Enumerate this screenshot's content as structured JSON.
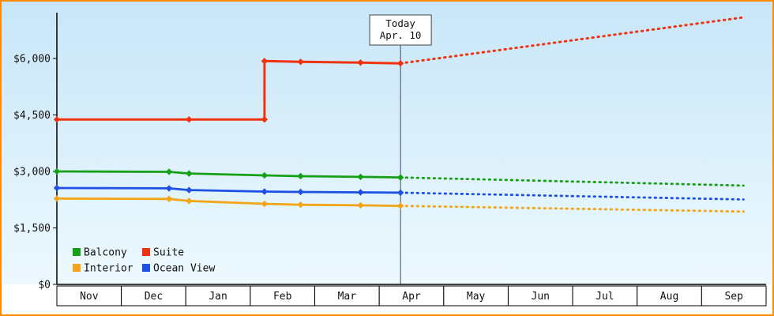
{
  "colors": {
    "frame_border": "#ff8c00",
    "bg_top": "#c8e6f8",
    "bg_bottom": "#edf9fe",
    "axis": "#000000",
    "text": "#111111",
    "today_line": "#3a4a5a",
    "annotation_border": "#444444",
    "month_cell_fill": "#ffffff"
  },
  "chart_data": {
    "type": "line",
    "title": "",
    "forecast_style": "dotted",
    "legend_position": "bottom-left",
    "grid": false,
    "x_axis": {
      "months": [
        "Nov",
        "Dec",
        "Jan",
        "Feb",
        "Mar",
        "Apr",
        "May",
        "Jun",
        "Jul",
        "Aug",
        "Sep"
      ]
    },
    "y_axis": {
      "ylim": [
        0,
        7200
      ],
      "ticks": [
        {
          "value": 0,
          "label": "$0"
        },
        {
          "value": 1500,
          "label": "$1,500"
        },
        {
          "value": 3000,
          "label": "$3,000"
        },
        {
          "value": 4500,
          "label": "$4,500"
        },
        {
          "value": 6000,
          "label": "$6,000"
        }
      ]
    },
    "today": {
      "label_line1": "Today",
      "label_line2": "Apr. 10",
      "month_position": 5.33
    },
    "series": [
      {
        "name": "Balcony",
        "color": "#16a016",
        "points_solid": [
          [
            0,
            3000
          ],
          [
            1.74,
            2990
          ],
          [
            2.05,
            2945
          ],
          [
            3.22,
            2895
          ],
          [
            3.78,
            2875
          ],
          [
            4.71,
            2855
          ],
          [
            5.33,
            2840
          ]
        ],
        "points_forecast": [
          [
            5.33,
            2840
          ],
          [
            10.65,
            2625
          ]
        ],
        "marker_points": [
          [
            0,
            3000
          ],
          [
            1.74,
            2990
          ],
          [
            2.05,
            2945
          ],
          [
            3.22,
            2895
          ],
          [
            3.78,
            2875
          ],
          [
            4.71,
            2855
          ],
          [
            5.33,
            2840
          ]
        ]
      },
      {
        "name": "Suite",
        "color": "#ef3311",
        "points_solid": [
          [
            0,
            4380
          ],
          [
            2.05,
            4380
          ],
          [
            3.22,
            4380
          ],
          [
            3.22,
            5930
          ],
          [
            3.78,
            5910
          ],
          [
            4.71,
            5890
          ],
          [
            5.33,
            5870
          ]
        ],
        "points_forecast": [
          [
            5.33,
            5870
          ],
          [
            10.65,
            7090
          ]
        ],
        "marker_points": [
          [
            0,
            4380
          ],
          [
            2.05,
            4380
          ],
          [
            3.22,
            4380
          ],
          [
            3.22,
            5930
          ],
          [
            3.78,
            5910
          ],
          [
            4.71,
            5890
          ],
          [
            5.33,
            5870
          ]
        ]
      },
      {
        "name": "Interior",
        "color": "#f2a516",
        "points_solid": [
          [
            0,
            2280
          ],
          [
            1.74,
            2270
          ],
          [
            2.05,
            2215
          ],
          [
            3.22,
            2140
          ],
          [
            3.78,
            2115
          ],
          [
            4.71,
            2100
          ],
          [
            5.33,
            2085
          ]
        ],
        "points_forecast": [
          [
            5.33,
            2085
          ],
          [
            10.65,
            1935
          ]
        ],
        "marker_points": [
          [
            0,
            2280
          ],
          [
            1.74,
            2270
          ],
          [
            2.05,
            2215
          ],
          [
            3.22,
            2140
          ],
          [
            3.78,
            2115
          ],
          [
            4.71,
            2100
          ],
          [
            5.33,
            2085
          ]
        ]
      },
      {
        "name": "Ocean View",
        "color": "#1e50e6",
        "points_solid": [
          [
            0,
            2560
          ],
          [
            1.74,
            2550
          ],
          [
            2.05,
            2505
          ],
          [
            3.22,
            2465
          ],
          [
            3.78,
            2455
          ],
          [
            4.71,
            2445
          ],
          [
            5.33,
            2435
          ]
        ],
        "points_forecast": [
          [
            5.33,
            2435
          ],
          [
            10.65,
            2255
          ]
        ],
        "marker_points": [
          [
            0,
            2560
          ],
          [
            1.74,
            2550
          ],
          [
            2.05,
            2505
          ],
          [
            3.22,
            2465
          ],
          [
            3.78,
            2455
          ],
          [
            4.71,
            2445
          ],
          [
            5.33,
            2435
          ]
        ]
      }
    ],
    "legend": {
      "columns": 2
    }
  }
}
